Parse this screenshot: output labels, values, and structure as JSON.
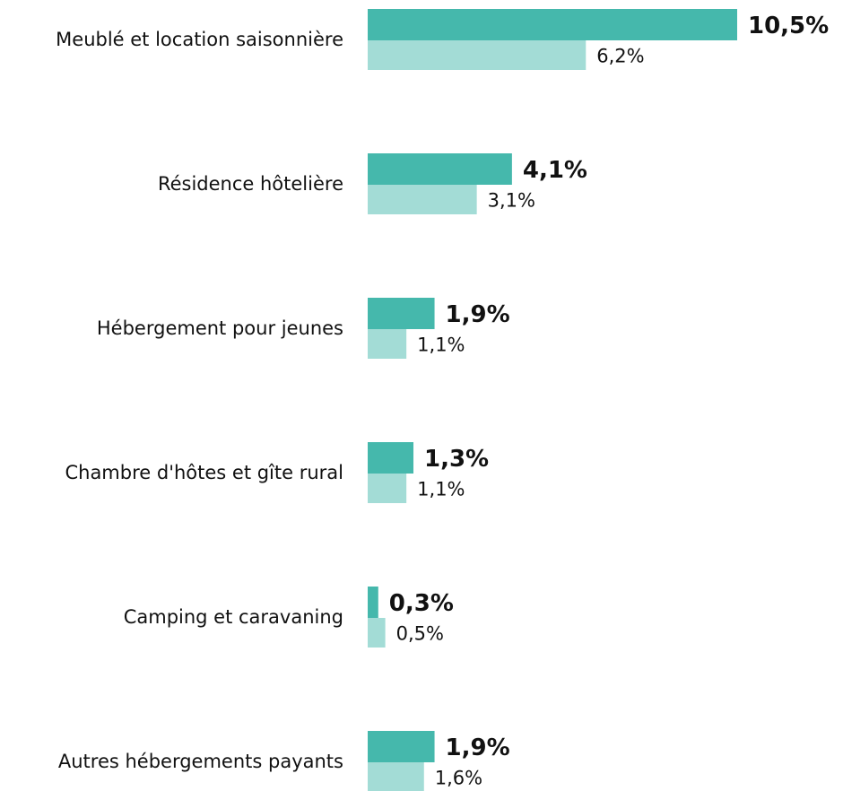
{
  "chart_data": {
    "type": "bar",
    "orientation": "horizontal",
    "categories": [
      "Meublé et location saisonnière",
      "Résidence hôtelière",
      "Hébergement pour jeunes",
      "Chambre d'hôtes et gîte rural",
      "Camping et caravaning",
      "Autres hébergements payants"
    ],
    "series": [
      {
        "color": "#45b8ac",
        "values": [
          10.5,
          4.1,
          1.9,
          1.3,
          0.3,
          1.9
        ],
        "value_labels": [
          "10,5%",
          "4,1%",
          "1,9%",
          "1,3%",
          "0,3%",
          "1,9%"
        ]
      },
      {
        "color": "#a3dcd6",
        "values": [
          6.2,
          3.1,
          1.1,
          1.1,
          0.5,
          1.6
        ],
        "value_labels": [
          "6,2%",
          "3,1%",
          "1,1%",
          "1,1%",
          "0,5%",
          "1,6%"
        ]
      }
    ]
  }
}
